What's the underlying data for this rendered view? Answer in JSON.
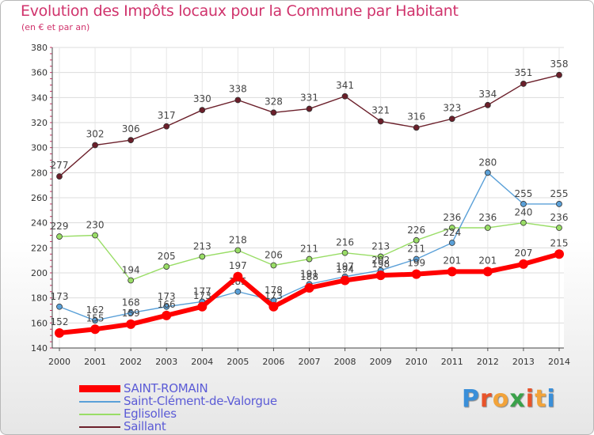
{
  "title": "Evolution des Impôts locaux pour la Commune par Habitant",
  "subtitle": "(en € et par an)",
  "logo": {
    "text": "Proxiti",
    "colors": [
      "#3a8fd9",
      "#e8532a",
      "#f2a33a",
      "#3aa14a",
      "#e8532a",
      "#f2a33a",
      "#3a8fd9"
    ]
  },
  "chart_data": {
    "type": "line",
    "x": [
      2000,
      2001,
      2002,
      2003,
      2004,
      2005,
      2006,
      2007,
      2008,
      2009,
      2010,
      2011,
      2012,
      2013,
      2014
    ],
    "ylim": [
      140,
      380
    ],
    "yticks": [
      140,
      160,
      180,
      200,
      220,
      240,
      260,
      280,
      300,
      320,
      340,
      360,
      380
    ],
    "grid": true,
    "legend_position": "bottom-left",
    "series": [
      {
        "name": "Saillant",
        "color": "#6b1f2a",
        "values": [
          277,
          302,
          306,
          317,
          330,
          338,
          328,
          331,
          341,
          321,
          316,
          323,
          334,
          351,
          358
        ],
        "labels": [
          "277",
          "302",
          "306",
          "317",
          "330",
          "338",
          "328",
          "331",
          "341",
          "321",
          "316",
          "323",
          "334",
          "351",
          "358"
        ]
      },
      {
        "name": "Eglisolles",
        "color": "#99dd66",
        "values": [
          229,
          230,
          194,
          205,
          213,
          218,
          206,
          211,
          216,
          213,
          226,
          236,
          236,
          240,
          236
        ],
        "labels": [
          "229",
          "230",
          "194",
          "205",
          "213",
          "218",
          "206",
          "211",
          "216",
          "213",
          "226",
          "236",
          "236",
          "240",
          "236"
        ]
      },
      {
        "name": "Saint-Clément-de-Valorgue",
        "color": "#5aa0d8",
        "values": [
          173,
          162,
          168,
          173,
          177,
          185,
          178,
          191,
          197,
          202,
          211,
          224,
          280,
          255,
          255
        ],
        "labels": [
          "173",
          "162",
          "168",
          "173",
          "177",
          "185",
          "178",
          "191",
          "197",
          "202",
          "211",
          "224",
          "280",
          "255",
          "255"
        ]
      },
      {
        "name": "SAINT-ROMAIN",
        "color": "#ff0000",
        "values": [
          152,
          155,
          159,
          166,
          173,
          197,
          173,
          188,
          194,
          198,
          199,
          201,
          201,
          207,
          215
        ],
        "labels": [
          "152",
          "155",
          "159",
          "166",
          "173",
          "197",
          "173",
          "188",
          "194",
          "198",
          "199",
          "201",
          "201",
          "207",
          "215"
        ]
      }
    ]
  }
}
